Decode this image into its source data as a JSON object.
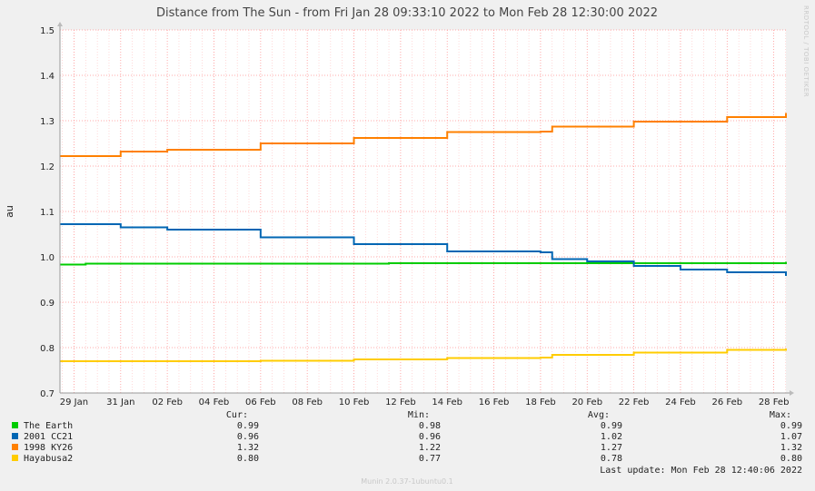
{
  "colors": {
    "background": "#f0f0f0",
    "plot_bg": "#ffffff",
    "grid_major": "#ff9090",
    "grid_minor": "#ffc0c0"
  },
  "chart_data": {
    "type": "line",
    "title": "Distance from The Sun - from Fri Jan 28 09:33:10 2022 to Mon Feb 28 12:30:00 2022",
    "ylabel": "au",
    "xlabel": "",
    "ylim": [
      0.7,
      1.5
    ],
    "y_ticks": [
      0.7,
      0.8,
      0.9,
      1.0,
      1.1,
      1.2,
      1.3,
      1.4,
      1.5
    ],
    "y_tick_labels": [
      "0.7",
      "0.8",
      "0.9",
      "1.0",
      "1.1",
      "1.2",
      "1.3",
      "1.4",
      "1.5"
    ],
    "xlim": [
      "2022-01-28T09:33:10",
      "2022-02-28T12:30:00"
    ],
    "x_ticks": [
      "2022-01-29",
      "2022-01-31",
      "2022-02-02",
      "2022-02-04",
      "2022-02-06",
      "2022-02-08",
      "2022-02-10",
      "2022-02-12",
      "2022-02-14",
      "2022-02-16",
      "2022-02-18",
      "2022-02-20",
      "2022-02-22",
      "2022-02-24",
      "2022-02-26",
      "2022-02-28"
    ],
    "x_tick_labels": [
      "29 Jan",
      "31 Jan",
      "02 Feb",
      "04 Feb",
      "06 Feb",
      "08 Feb",
      "10 Feb",
      "12 Feb",
      "14 Feb",
      "16 Feb",
      "18 Feb",
      "20 Feb",
      "22 Feb",
      "24 Feb",
      "26 Feb",
      "28 Feb"
    ],
    "grid": true,
    "legend_position": "bottom",
    "series": [
      {
        "name": "The Earth",
        "color": "#00cc00",
        "x": [
          "2022-01-28T09:33",
          "2022-01-29T12:00",
          "2022-02-11T12:00",
          "2022-02-28T12:30"
        ],
        "y": [
          0.983,
          0.985,
          0.986,
          0.989
        ]
      },
      {
        "name": "2001 CC21",
        "color": "#0066b3",
        "x": [
          "2022-01-28T09:33",
          "2022-01-31T00:00",
          "2022-02-02T00:00",
          "2022-02-06T00:00",
          "2022-02-10T00:00",
          "2022-02-14T00:00",
          "2022-02-18T00:00",
          "2022-02-18T12:00",
          "2022-02-20T00:00",
          "2022-02-22T00:00",
          "2022-02-24T00:00",
          "2022-02-26T00:00",
          "2022-02-28T12:30"
        ],
        "y": [
          1.072,
          1.065,
          1.06,
          1.043,
          1.028,
          1.012,
          1.01,
          0.995,
          0.99,
          0.98,
          0.972,
          0.966,
          0.958
        ]
      },
      {
        "name": "1998 KY26",
        "color": "#ff8000",
        "x": [
          "2022-01-28T09:33",
          "2022-01-31T00:00",
          "2022-02-02T00:00",
          "2022-02-06T00:00",
          "2022-02-10T00:00",
          "2022-02-14T00:00",
          "2022-02-18T00:00",
          "2022-02-18T12:00",
          "2022-02-22T00:00",
          "2022-02-26T00:00",
          "2022-02-28T12:30"
        ],
        "y": [
          1.222,
          1.232,
          1.236,
          1.25,
          1.262,
          1.275,
          1.276,
          1.287,
          1.298,
          1.308,
          1.317
        ]
      },
      {
        "name": "Hayabusa2",
        "color": "#ffcc00",
        "x": [
          "2022-01-28T09:33",
          "2022-02-06T00:00",
          "2022-02-10T00:00",
          "2022-02-14T00:00",
          "2022-02-18T00:00",
          "2022-02-18T12:00",
          "2022-02-22T00:00",
          "2022-02-26T00:00",
          "2022-02-28T12:30"
        ],
        "y": [
          0.77,
          0.771,
          0.774,
          0.777,
          0.778,
          0.784,
          0.789,
          0.795,
          0.798
        ]
      }
    ]
  },
  "legend": {
    "headers": {
      "cur": "Cur:",
      "min": "Min:",
      "avg": "Avg:",
      "max": "Max:"
    },
    "rows": [
      {
        "name": "The Earth",
        "cur": "0.99",
        "min": "0.98",
        "avg": "0.99",
        "max": "0.99"
      },
      {
        "name": "2001 CC21",
        "cur": "0.96",
        "min": "0.96",
        "avg": "1.02",
        "max": "1.07"
      },
      {
        "name": "1998 KY26",
        "cur": "1.32",
        "min": "1.22",
        "avg": "1.27",
        "max": "1.32"
      },
      {
        "name": "Hayabusa2",
        "cur": "0.80",
        "min": "0.77",
        "avg": "0.78",
        "max": "0.80"
      }
    ]
  },
  "last_update": "Last update: Mon Feb 28 12:40:06 2022",
  "side_credit": "RRDTOOL / TOBI OETIKER",
  "footer": "Munin 2.0.37-1ubuntu0.1"
}
